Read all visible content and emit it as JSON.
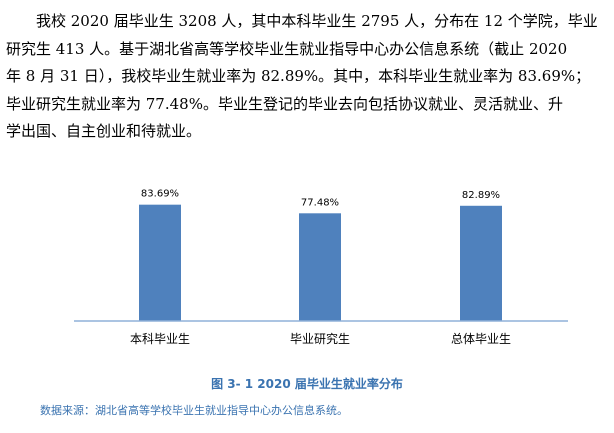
{
  "paragraph": {
    "line1": "我校 2020 届毕业生 3208 人，其中本科毕业生 2795 人，分布在 12 个学院，毕业",
    "line2": "研究生 413 人。基于湖北省高等学校毕业生就业指导中心办公信息系统（截止 2020",
    "line3": "年 8 月 31 日），我校毕业生就业率为 82.89%。其中，本科毕业生就业率为 83.69%；",
    "line4": "毕业研究生就业率为 77.48%。毕业生登记的毕业去向包括协议就业、灵活就业、升",
    "line5": "学出国、自主创业和待就业。"
  },
  "chart_data": {
    "type": "bar",
    "categories": [
      "本科毕业生",
      "毕业研究生",
      "总体毕业生"
    ],
    "values": [
      83.69,
      77.48,
      82.89
    ],
    "data_labels": [
      "83.69%",
      "77.48%",
      "82.89%"
    ],
    "ylim": [
      0,
      100
    ],
    "grid": false,
    "bar_color": "#4f81bd",
    "axis_color": "#8fb0d8"
  },
  "caption": "图 3- 1   2020 届毕业生就业率分布",
  "source": "数据来源：湖北省高等学校毕业生就业指导中心办公信息系统。"
}
